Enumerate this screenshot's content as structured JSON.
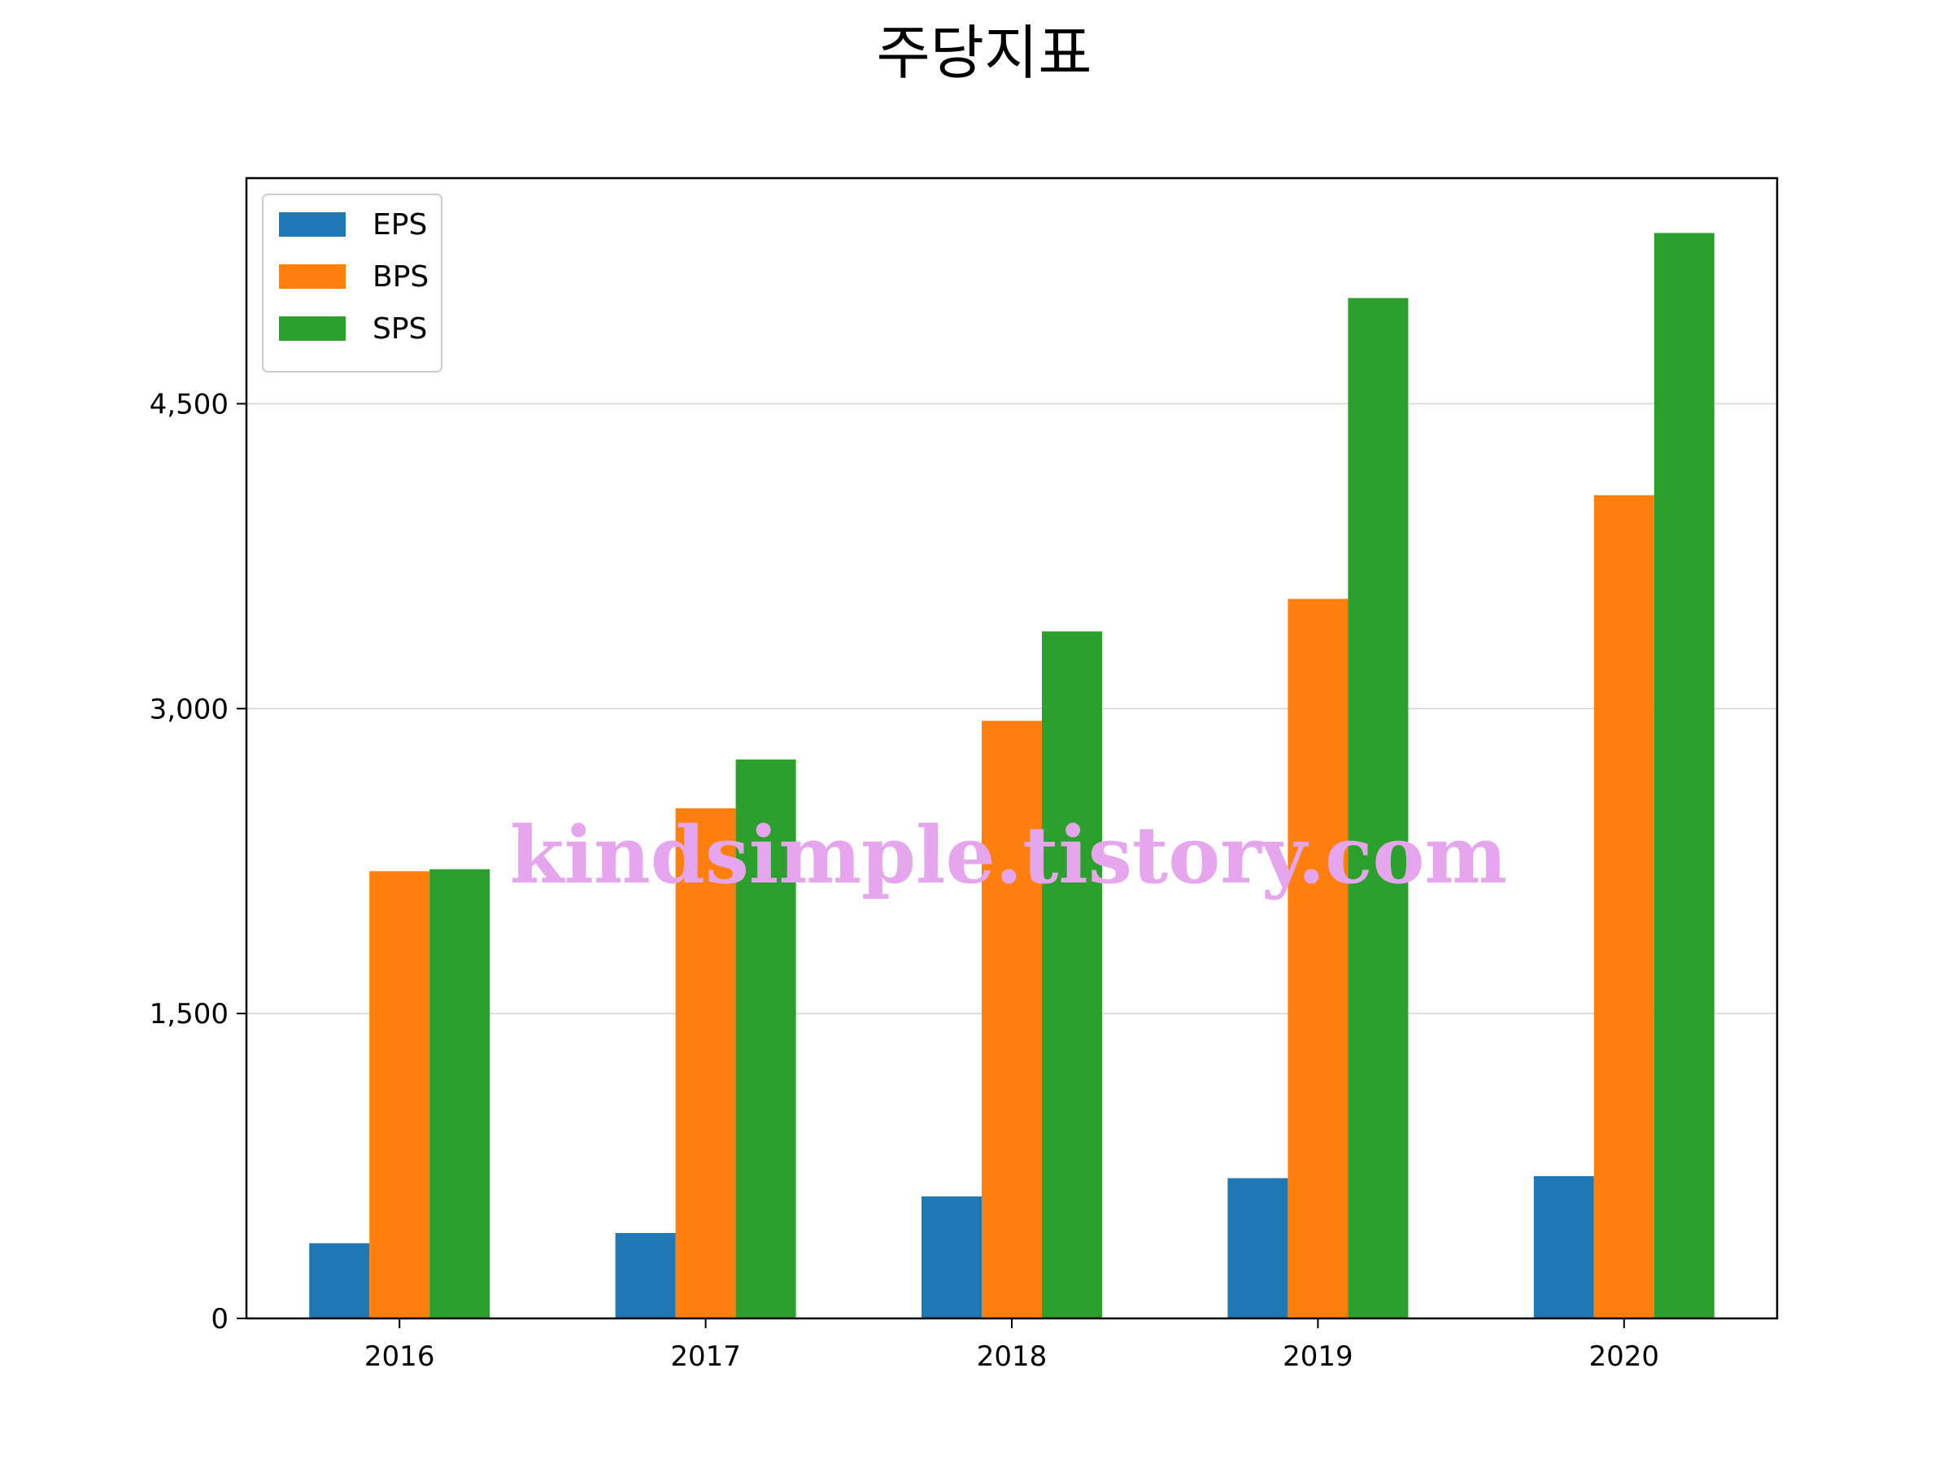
{
  "chart_data": {
    "type": "bar",
    "title": "주당지표",
    "xlabel": "",
    "ylabel": "",
    "categories": [
      "2016",
      "2017",
      "2018",
      "2019",
      "2020"
    ],
    "series": [
      {
        "name": "EPS",
        "color": "#1f77b4",
        "values": [
          370,
          420,
          600,
          690,
          700
        ]
      },
      {
        "name": "BPS",
        "color": "#ff7f0e",
        "values": [
          2200,
          2510,
          2940,
          3540,
          4050
        ]
      },
      {
        "name": "SPS",
        "color": "#2ca02c",
        "values": [
          2210,
          2750,
          3380,
          5020,
          5340
        ]
      }
    ],
    "ylim": [
      0,
      5610
    ],
    "yticks": [
      0,
      1500,
      3000,
      4500
    ],
    "ytick_labels": [
      "0",
      "1,500",
      "3,000",
      "4,500"
    ],
    "grid": "y",
    "legend_position": "top-left",
    "watermark": "kindsimple.tistory.com"
  }
}
